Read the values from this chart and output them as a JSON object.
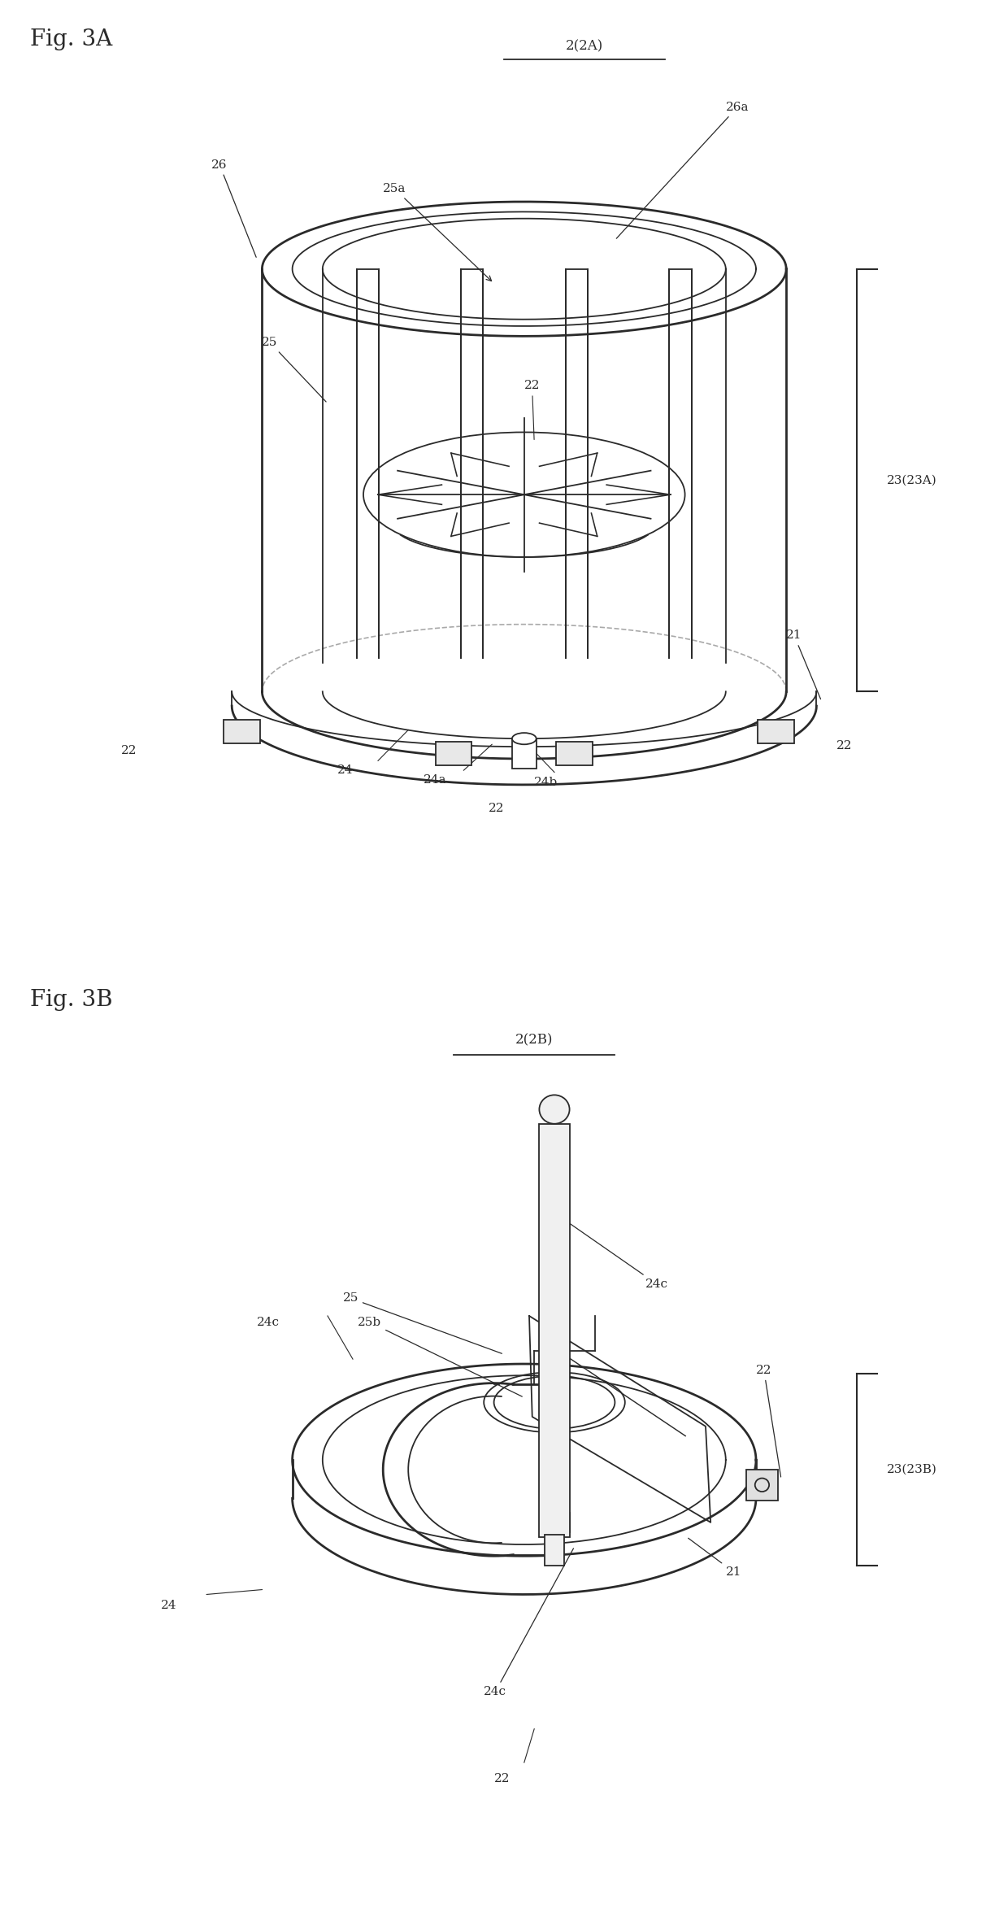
{
  "figure_title_A": "Fig. 3A",
  "figure_title_B": "Fig. 3B",
  "label_2A": "2(2A)",
  "label_2B": "2(2B)",
  "label_23A": "23(23A)",
  "label_23B": "23(23B)",
  "bg_color": "#ffffff",
  "line_color": "#2a2a2a",
  "font_size_title": 20,
  "font_size_label": 11
}
